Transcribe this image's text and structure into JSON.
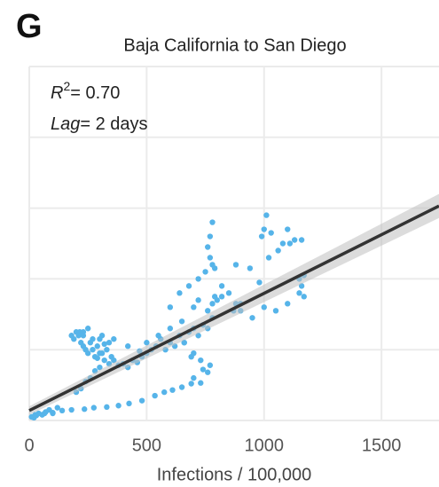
{
  "chart_data": {
    "type": "scatter",
    "panel_label": "G",
    "title": "Baja California to San Diego",
    "x_label": "Infections / 100,000",
    "annotations": {
      "r_symbol": "R",
      "r_exponent": "2",
      "r_value": "= 0.70",
      "lag_symbol": "Lag",
      "lag_value": "= 2 days"
    },
    "color": "#56b4e9",
    "x": [
      25,
      65,
      100,
      140,
      180,
      235,
      275,
      330,
      380,
      425,
      480,
      535,
      575,
      610,
      650,
      690,
      730,
      760,
      770,
      10,
      20,
      30,
      40,
      55,
      70,
      85,
      100,
      120,
      180,
      190,
      200,
      210,
      220,
      230,
      240,
      250,
      260,
      270,
      280,
      290,
      300,
      310,
      320,
      330,
      340,
      350,
      300,
      280,
      260,
      240,
      220,
      200,
      215,
      230,
      320,
      340,
      360,
      380,
      400,
      420,
      440,
      460,
      480,
      500,
      520,
      540,
      560,
      580,
      600,
      620,
      640,
      660,
      680,
      700,
      720,
      740,
      760,
      780,
      500,
      550,
      600,
      650,
      700,
      720,
      760,
      780,
      800,
      820,
      850,
      880,
      900,
      950,
      1000,
      1050,
      1100,
      1150,
      1160,
      1170,
      600,
      640,
      680,
      720,
      750,
      770,
      780,
      760,
      790,
      770,
      780,
      880,
      940,
      990,
      1000,
      1010,
      1030,
      1060,
      1080,
      1100,
      1110,
      1130,
      1160,
      1020,
      1150,
      1170,
      980,
      870,
      820,
      790,
      900,
      660,
      700,
      730,
      690,
      700,
      740,
      250,
      230,
      270,
      300,
      310,
      290,
      360,
      420,
      470
    ],
    "values": [
      0.08,
      0.1,
      0.11,
      0.14,
      0.15,
      0.16,
      0.18,
      0.19,
      0.21,
      0.24,
      0.28,
      0.35,
      0.4,
      0.43,
      0.47,
      0.52,
      0.53,
      0.68,
      0.78,
      0.05,
      0.04,
      0.07,
      0.1,
      0.08,
      0.12,
      0.15,
      0.1,
      0.18,
      1.2,
      1.15,
      1.25,
      1.2,
      1.1,
      1.05,
      1.0,
      0.95,
      1.1,
      1.0,
      0.9,
      1.05,
      1.15,
      0.95,
      0.85,
      1.0,
      1.1,
      0.9,
      0.75,
      0.7,
      0.6,
      0.55,
      0.45,
      0.4,
      1.25,
      1.2,
      1.08,
      0.8,
      0.85,
      0.78,
      0.8,
      0.75,
      0.85,
      0.82,
      0.9,
      0.95,
      1.0,
      1.05,
      1.15,
      1.0,
      1.1,
      1.05,
      1.2,
      1.1,
      1.25,
      1.3,
      1.2,
      1.35,
      1.3,
      1.45,
      1.1,
      1.2,
      1.3,
      1.4,
      1.6,
      1.7,
      1.55,
      1.65,
      1.7,
      1.75,
      1.8,
      1.65,
      1.55,
      1.45,
      1.6,
      1.55,
      1.65,
      1.8,
      1.9,
      1.75,
      1.6,
      1.8,
      1.9,
      2.0,
      2.1,
      2.3,
      2.2,
      2.45,
      2.15,
      2.6,
      2.8,
      2.2,
      2.15,
      2.6,
      2.7,
      2.9,
      2.65,
      2.4,
      2.5,
      2.7,
      2.5,
      2.55,
      2.55,
      2.3,
      2.0,
      2.05,
      1.95,
      1.55,
      1.9,
      1.75,
      1.65,
      1.1,
      0.95,
      0.85,
      0.9,
      0.6,
      0.72,
      1.3,
      1.25,
      1.15,
      0.95,
      1.2,
      0.88,
      1.15,
      1.05,
      0.98
    ],
    "fit": {
      "x": [
        0,
        1745
      ],
      "values": [
        0.14,
        3.03
      ],
      "lower": [
        0.08,
        2.86
      ],
      "upper": [
        0.2,
        3.2
      ],
      "color": "#333333",
      "band_color": "#bfbfbf"
    },
    "xlim": [
      0,
      1745
    ],
    "ylim": [
      0,
      5
    ],
    "xticks": [
      0,
      500,
      1000,
      1500
    ],
    "yticks": [
      0,
      1,
      2,
      3,
      4,
      5
    ],
    "grid": true
  }
}
